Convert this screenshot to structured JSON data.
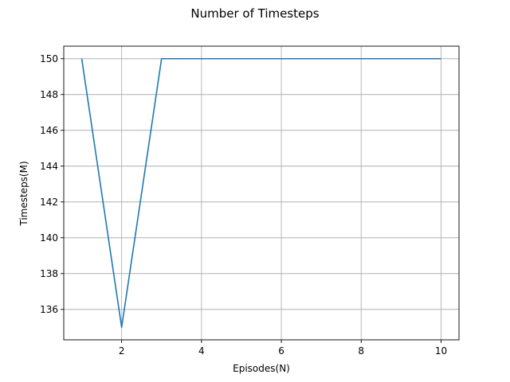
{
  "chart_data": {
    "type": "line",
    "title": "Number of Timesteps",
    "xlabel": "Episodes(N)",
    "ylabel": "Timesteps(M)",
    "xlim": [
      0.55,
      10.45
    ],
    "ylim": [
      134.3,
      150.7
    ],
    "xticks": [
      2,
      4,
      6,
      8,
      10
    ],
    "yticks": [
      136,
      138,
      140,
      142,
      144,
      146,
      148,
      150
    ],
    "grid": true,
    "series": [
      {
        "color": "#1f77b4",
        "x": [
          1,
          2,
          3,
          4,
          5,
          6,
          7,
          8,
          9,
          10
        ],
        "values": [
          150,
          135,
          150,
          150,
          150,
          150,
          150,
          150,
          150,
          150
        ]
      }
    ]
  }
}
